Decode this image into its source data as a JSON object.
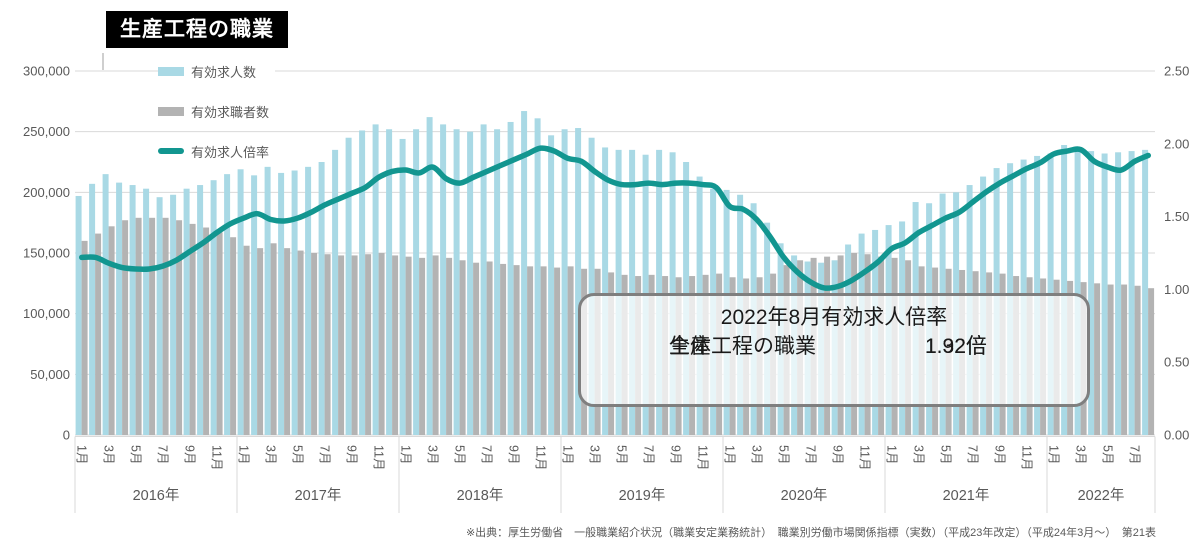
{
  "title": "生産工程の職業",
  "legend": [
    {
      "label": "有効求人数",
      "type": "bar",
      "color": "#A9D9E5"
    },
    {
      "label": "有効求職者数",
      "type": "bar",
      "color": "#B3B3B3"
    },
    {
      "label": "有効求人倍率",
      "type": "line",
      "color": "#129690"
    }
  ],
  "annotation": {
    "title": "2022年8月有効求人倍率",
    "rows": [
      {
        "label": "全体",
        "value": "1.32倍"
      },
      {
        "label": "生産工程の職業",
        "value": "1.92倍"
      }
    ]
  },
  "source": "※出典：厚生労働省　一般職業紹介状況（職業安定業務統計）　職業別労働市場関係指標（実数）（平成23年改定）（平成24年3月～）　第21表",
  "chart_data": {
    "type": "bar+line (dual axis)",
    "grid": true,
    "colors": {
      "openings": "#A9D9E5",
      "seekers": "#B3B3B3",
      "ratio": "#129690",
      "gridline": "#D9D9D9"
    },
    "y_left": {
      "min": 0,
      "max": 300000,
      "tick_interval": 50000,
      "tick_labels": [
        "0",
        "50,000",
        "100,000",
        "150,000",
        "200,000",
        "250,000",
        "300,000"
      ]
    },
    "y_right": {
      "min": 0,
      "max": 2.5,
      "tick_interval": 0.5,
      "tick_labels": [
        "0.00",
        "0.50",
        "1.00",
        "1.50",
        "2.00",
        "2.50"
      ]
    },
    "years": [
      {
        "label": "2016年",
        "n_months": 12
      },
      {
        "label": "2017年",
        "n_months": 12
      },
      {
        "label": "2018年",
        "n_months": 12
      },
      {
        "label": "2019年",
        "n_months": 12
      },
      {
        "label": "2020年",
        "n_months": 12
      },
      {
        "label": "2021年",
        "n_months": 12
      },
      {
        "label": "2022年",
        "n_months": 8
      }
    ],
    "month_tick_labels": [
      "1月",
      "3月",
      "5月",
      "7月",
      "9月",
      "11月"
    ],
    "month_tick_positions": [
      0,
      2,
      4,
      6,
      8,
      10
    ],
    "series": [
      {
        "name": "有効求人数",
        "type": "bar",
        "axis": "left",
        "values": [
          197000,
          207000,
          215000,
          208000,
          206000,
          203000,
          196000,
          198000,
          203000,
          206000,
          210000,
          215000,
          219000,
          214000,
          221000,
          216000,
          218000,
          221000,
          225000,
          235000,
          245000,
          251000,
          256000,
          252000,
          244000,
          252000,
          262000,
          256000,
          252000,
          250000,
          256000,
          252000,
          258000,
          267000,
          261000,
          247000,
          252000,
          253000,
          245000,
          237000,
          235000,
          235000,
          231000,
          235000,
          233000,
          225000,
          213000,
          203000,
          202000,
          198000,
          191000,
          175000,
          158000,
          148000,
          143000,
          142000,
          144000,
          157000,
          166000,
          169000,
          173000,
          176000,
          192000,
          191000,
          199000,
          200000,
          206000,
          213000,
          220000,
          224000,
          227000,
          230000,
          232000,
          239000,
          237000,
          234000,
          232000,
          233000,
          234000,
          235000
        ]
      },
      {
        "name": "有効求職者数",
        "type": "bar",
        "axis": "left",
        "values": [
          160000,
          166000,
          172000,
          177000,
          179000,
          179000,
          179000,
          177000,
          174000,
          171000,
          167000,
          163000,
          156000,
          154000,
          158000,
          154000,
          152000,
          150000,
          149000,
          148000,
          148000,
          149000,
          150000,
          148000,
          147000,
          146000,
          148000,
          146000,
          144000,
          142000,
          143000,
          141000,
          140000,
          139000,
          139000,
          138000,
          139000,
          137000,
          137000,
          134000,
          132000,
          131000,
          132000,
          131000,
          130000,
          131000,
          132000,
          133000,
          130000,
          129000,
          130000,
          133000,
          140000,
          144000,
          146000,
          147000,
          148000,
          150000,
          149000,
          147000,
          146000,
          144000,
          139000,
          138000,
          137000,
          136000,
          135000,
          134000,
          133000,
          131000,
          130000,
          129000,
          128000,
          127000,
          126000,
          125000,
          124000,
          124000,
          123000,
          121000
        ]
      },
      {
        "name": "有効求人倍率",
        "type": "line",
        "axis": "right",
        "values": [
          1.22,
          1.22,
          1.18,
          1.15,
          1.14,
          1.14,
          1.16,
          1.2,
          1.26,
          1.32,
          1.39,
          1.45,
          1.49,
          1.52,
          1.48,
          1.47,
          1.49,
          1.53,
          1.58,
          1.62,
          1.66,
          1.7,
          1.77,
          1.81,
          1.82,
          1.8,
          1.84,
          1.76,
          1.73,
          1.77,
          1.81,
          1.85,
          1.89,
          1.93,
          1.97,
          1.95,
          1.9,
          1.88,
          1.81,
          1.75,
          1.72,
          1.72,
          1.73,
          1.72,
          1.73,
          1.73,
          1.72,
          1.7,
          1.57,
          1.55,
          1.48,
          1.36,
          1.22,
          1.12,
          1.05,
          1.01,
          1.02,
          1.06,
          1.12,
          1.19,
          1.28,
          1.32,
          1.39,
          1.44,
          1.49,
          1.53,
          1.6,
          1.67,
          1.73,
          1.78,
          1.83,
          1.87,
          1.93,
          1.95,
          1.96,
          1.88,
          1.84,
          1.82,
          1.88,
          1.92
        ]
      }
    ]
  }
}
